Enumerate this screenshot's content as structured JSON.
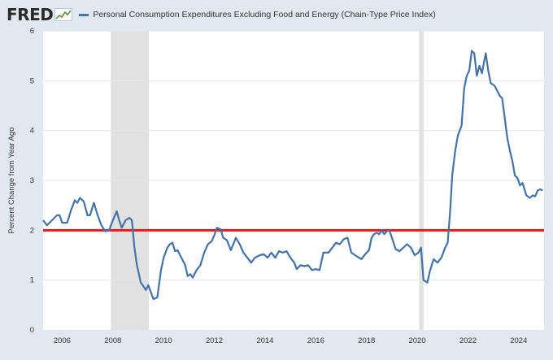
{
  "header": {
    "logo_text": "FRED",
    "logo_icon": "chart-line-icon",
    "series_title": "Personal Consumption Expenditures Excluding Food and Energy (Chain-Type Price Index)"
  },
  "colors": {
    "series": "#4572a7",
    "reference_line": "#e31a1c",
    "recession": "#e1e1e1",
    "page_bg": "#e1e9f0",
    "plot_bg": "#ffffff"
  },
  "chart_data": {
    "type": "line",
    "title": "Personal Consumption Expenditures Excluding Food and Energy (Chain-Type Price Index)",
    "ylabel": "Percent Change from Year Ago",
    "xlabel": "",
    "xlim": [
      2005.25,
      2025.0
    ],
    "ylim": [
      0,
      6
    ],
    "x_ticks": [
      2006,
      2008,
      2010,
      2012,
      2014,
      2016,
      2018,
      2020,
      2022,
      2024
    ],
    "y_ticks": [
      0,
      1,
      2,
      3,
      4,
      5,
      6
    ],
    "grid": "horizontal",
    "reference_line": 2.0,
    "recessions": [
      [
        2007.92,
        2009.42
      ],
      [
        2020.08,
        2020.25
      ]
    ],
    "series": [
      {
        "name": "Personal Consumption Expenditures Excluding Food and Energy (Chain-Type Price Index)",
        "points": [
          [
            2005.25,
            2.2
          ],
          [
            2005.4,
            2.1
          ],
          [
            2005.6,
            2.2
          ],
          [
            2005.8,
            2.3
          ],
          [
            2005.9,
            2.3
          ],
          [
            2006.0,
            2.15
          ],
          [
            2006.2,
            2.15
          ],
          [
            2006.35,
            2.4
          ],
          [
            2006.5,
            2.6
          ],
          [
            2006.6,
            2.55
          ],
          [
            2006.7,
            2.65
          ],
          [
            2006.85,
            2.58
          ],
          [
            2007.0,
            2.3
          ],
          [
            2007.1,
            2.3
          ],
          [
            2007.25,
            2.55
          ],
          [
            2007.4,
            2.3
          ],
          [
            2007.55,
            2.1
          ],
          [
            2007.7,
            1.98
          ],
          [
            2007.85,
            2.0
          ],
          [
            2008.0,
            2.2
          ],
          [
            2008.15,
            2.38
          ],
          [
            2008.25,
            2.2
          ],
          [
            2008.35,
            2.05
          ],
          [
            2008.5,
            2.2
          ],
          [
            2008.65,
            2.25
          ],
          [
            2008.75,
            2.2
          ],
          [
            2008.85,
            1.65
          ],
          [
            2008.95,
            1.3
          ],
          [
            2009.1,
            0.95
          ],
          [
            2009.2,
            0.88
          ],
          [
            2009.3,
            0.8
          ],
          [
            2009.4,
            0.9
          ],
          [
            2009.5,
            0.75
          ],
          [
            2009.6,
            0.62
          ],
          [
            2009.75,
            0.65
          ],
          [
            2009.9,
            1.2
          ],
          [
            2010.0,
            1.45
          ],
          [
            2010.15,
            1.65
          ],
          [
            2010.25,
            1.72
          ],
          [
            2010.35,
            1.75
          ],
          [
            2010.45,
            1.58
          ],
          [
            2010.55,
            1.6
          ],
          [
            2010.7,
            1.45
          ],
          [
            2010.85,
            1.3
          ],
          [
            2010.95,
            1.08
          ],
          [
            2011.05,
            1.12
          ],
          [
            2011.15,
            1.05
          ],
          [
            2011.3,
            1.2
          ],
          [
            2011.45,
            1.3
          ],
          [
            2011.6,
            1.55
          ],
          [
            2011.75,
            1.72
          ],
          [
            2011.9,
            1.78
          ],
          [
            2012.0,
            1.9
          ],
          [
            2012.1,
            2.05
          ],
          [
            2012.25,
            2.02
          ],
          [
            2012.35,
            1.85
          ],
          [
            2012.5,
            1.8
          ],
          [
            2012.65,
            1.6
          ],
          [
            2012.75,
            1.72
          ],
          [
            2012.85,
            1.85
          ],
          [
            2013.0,
            1.72
          ],
          [
            2013.15,
            1.55
          ],
          [
            2013.3,
            1.45
          ],
          [
            2013.45,
            1.35
          ],
          [
            2013.6,
            1.45
          ],
          [
            2013.8,
            1.5
          ],
          [
            2013.95,
            1.52
          ],
          [
            2014.1,
            1.45
          ],
          [
            2014.25,
            1.55
          ],
          [
            2014.4,
            1.45
          ],
          [
            2014.55,
            1.58
          ],
          [
            2014.7,
            1.55
          ],
          [
            2014.85,
            1.58
          ],
          [
            2015.0,
            1.45
          ],
          [
            2015.15,
            1.35
          ],
          [
            2015.25,
            1.22
          ],
          [
            2015.4,
            1.3
          ],
          [
            2015.55,
            1.28
          ],
          [
            2015.7,
            1.3
          ],
          [
            2015.85,
            1.2
          ],
          [
            2016.0,
            1.22
          ],
          [
            2016.15,
            1.2
          ],
          [
            2016.3,
            1.55
          ],
          [
            2016.5,
            1.55
          ],
          [
            2016.65,
            1.65
          ],
          [
            2016.8,
            1.75
          ],
          [
            2016.95,
            1.72
          ],
          [
            2017.1,
            1.82
          ],
          [
            2017.25,
            1.85
          ],
          [
            2017.4,
            1.55
          ],
          [
            2017.55,
            1.5
          ],
          [
            2017.7,
            1.45
          ],
          [
            2017.8,
            1.42
          ],
          [
            2017.95,
            1.52
          ],
          [
            2018.1,
            1.6
          ],
          [
            2018.2,
            1.85
          ],
          [
            2018.3,
            1.92
          ],
          [
            2018.4,
            1.95
          ],
          [
            2018.5,
            1.92
          ],
          [
            2018.6,
            2.0
          ],
          [
            2018.7,
            1.92
          ],
          [
            2018.8,
            1.98
          ],
          [
            2018.9,
            2.0
          ],
          [
            2019.0,
            1.85
          ],
          [
            2019.15,
            1.62
          ],
          [
            2019.3,
            1.58
          ],
          [
            2019.45,
            1.65
          ],
          [
            2019.6,
            1.72
          ],
          [
            2019.75,
            1.65
          ],
          [
            2019.9,
            1.5
          ],
          [
            2020.05,
            1.55
          ],
          [
            2020.15,
            1.65
          ],
          [
            2020.25,
            1.0
          ],
          [
            2020.4,
            0.95
          ],
          [
            2020.5,
            1.18
          ],
          [
            2020.65,
            1.42
          ],
          [
            2020.8,
            1.35
          ],
          [
            2020.95,
            1.45
          ],
          [
            2021.1,
            1.65
          ],
          [
            2021.2,
            1.75
          ],
          [
            2021.3,
            2.4
          ],
          [
            2021.38,
            3.1
          ],
          [
            2021.5,
            3.6
          ],
          [
            2021.6,
            3.9
          ],
          [
            2021.75,
            4.1
          ],
          [
            2021.85,
            4.85
          ],
          [
            2021.95,
            5.1
          ],
          [
            2022.05,
            5.2
          ],
          [
            2022.15,
            5.6
          ],
          [
            2022.25,
            5.55
          ],
          [
            2022.35,
            5.1
          ],
          [
            2022.45,
            5.3
          ],
          [
            2022.55,
            5.15
          ],
          [
            2022.7,
            5.55
          ],
          [
            2022.8,
            5.2
          ],
          [
            2022.9,
            4.95
          ],
          [
            2023.05,
            4.9
          ],
          [
            2023.15,
            4.8
          ],
          [
            2023.25,
            4.7
          ],
          [
            2023.35,
            4.65
          ],
          [
            2023.45,
            4.25
          ],
          [
            2023.55,
            3.85
          ],
          [
            2023.65,
            3.6
          ],
          [
            2023.75,
            3.4
          ],
          [
            2023.85,
            3.1
          ],
          [
            2023.95,
            3.05
          ],
          [
            2024.05,
            2.9
          ],
          [
            2024.15,
            2.95
          ],
          [
            2024.3,
            2.7
          ],
          [
            2024.45,
            2.65
          ],
          [
            2024.55,
            2.7
          ],
          [
            2024.65,
            2.68
          ],
          [
            2024.75,
            2.8
          ],
          [
            2024.85,
            2.82
          ],
          [
            2024.95,
            2.8
          ]
        ]
      }
    ]
  }
}
